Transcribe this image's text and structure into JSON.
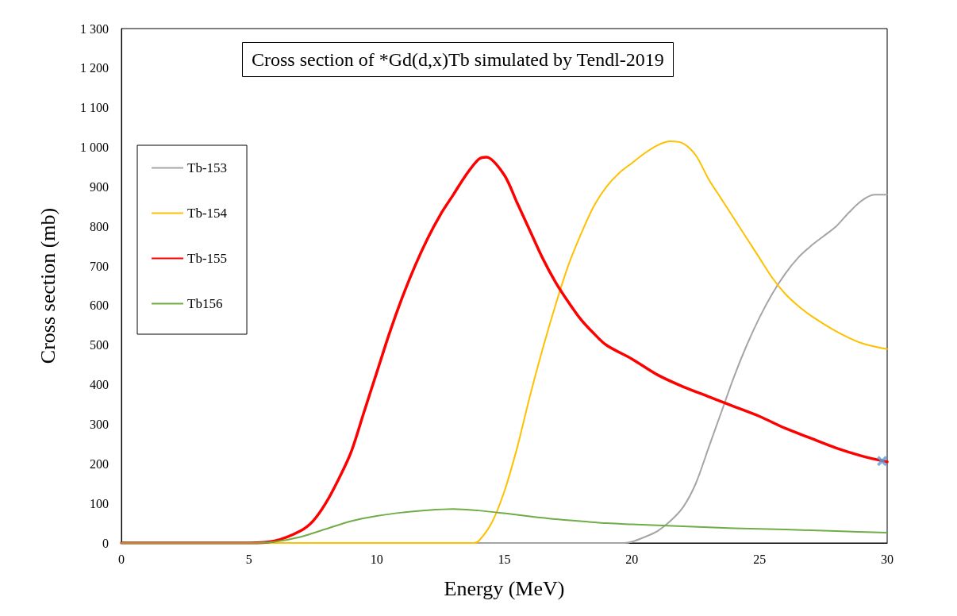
{
  "chart_data": {
    "type": "line",
    "title": "Cross section of *Gd(d,x)Tb simulated by Tendl-2019",
    "xlabel": "Energy (MeV)",
    "ylabel": "Cross section (mb)",
    "xlim": [
      0,
      30
    ],
    "xticks": [
      0,
      5,
      10,
      15,
      20,
      25,
      30
    ],
    "ylim": [
      0,
      1300
    ],
    "yticks": [
      0,
      100,
      200,
      300,
      400,
      500,
      600,
      700,
      800,
      900,
      {
        "value": 1000,
        "label": "1 000"
      },
      {
        "value": 1100,
        "label": "1 100"
      },
      {
        "value": 1200,
        "label": "1 200"
      },
      {
        "value": 1300,
        "label": "1 300"
      }
    ],
    "grid": false,
    "legend": "top left",
    "marker": "none",
    "line_style": "solid",
    "series": [
      {
        "name": "Tb-153",
        "color": "#a5a5a5",
        "x": [
          0,
          19.7,
          20,
          20.5,
          21,
          21.5,
          22,
          22.5,
          23,
          23.5,
          24,
          24.5,
          25,
          25.5,
          26,
          26.5,
          27,
          27.5,
          28,
          28.5,
          29,
          29.5,
          30
        ],
        "values": [
          0,
          0,
          3,
          15,
          30,
          55,
          90,
          150,
          240,
          330,
          420,
          500,
          570,
          630,
          680,
          720,
          750,
          775,
          800,
          835,
          865,
          880,
          880
        ]
      },
      {
        "name": "Tb-154",
        "color": "#ffc000",
        "x": [
          0,
          13.8,
          14,
          14.5,
          15,
          15.5,
          16,
          16.5,
          17,
          17.5,
          18,
          18.5,
          19,
          19.5,
          20,
          20.5,
          21,
          21.5,
          22,
          22.5,
          23,
          23.5,
          24,
          24.5,
          25,
          25.5,
          26,
          26.5,
          27,
          28,
          29,
          30
        ],
        "values": [
          0,
          0,
          5,
          50,
          130,
          240,
          370,
          490,
          600,
          700,
          780,
          850,
          900,
          935,
          960,
          985,
          1005,
          1015,
          1010,
          980,
          920,
          870,
          820,
          770,
          720,
          670,
          630,
          600,
          575,
          535,
          505,
          490
        ]
      },
      {
        "name": "Tb-155",
        "color": "#ff0000",
        "x": [
          0,
          5,
          6,
          7,
          7.5,
          8,
          8.5,
          9,
          9.5,
          10,
          10.5,
          11,
          11.5,
          12,
          12.5,
          13,
          13.5,
          14,
          14.3,
          15,
          15.5,
          16,
          16.5,
          17,
          17.5,
          18,
          18.5,
          19,
          20,
          21,
          22,
          23,
          24,
          25,
          26,
          27,
          28,
          29,
          30
        ],
        "values": [
          0,
          0,
          5,
          30,
          55,
          100,
          160,
          230,
          330,
          430,
          530,
          620,
          700,
          770,
          830,
          880,
          930,
          970,
          975,
          930,
          860,
          790,
          720,
          660,
          610,
          565,
          530,
          500,
          465,
          425,
          395,
          370,
          345,
          320,
          290,
          265,
          240,
          220,
          205
        ]
      },
      {
        "name": "Tb156",
        "color": "#70ad47",
        "x": [
          0,
          5,
          6,
          7,
          8,
          9,
          10,
          11,
          12,
          13,
          14,
          15,
          16,
          17,
          18,
          19,
          20,
          22,
          24,
          26,
          28,
          30
        ],
        "values": [
          0,
          0,
          3,
          15,
          35,
          55,
          68,
          77,
          83,
          86,
          82,
          75,
          67,
          60,
          55,
          50,
          47,
          42,
          37,
          34,
          30,
          26
        ]
      },
      {
        "type": "scatter",
        "marker": "cross",
        "color": "#5b9bd5",
        "x": [
          29.8
        ],
        "values": [
          207
        ]
      }
    ]
  }
}
